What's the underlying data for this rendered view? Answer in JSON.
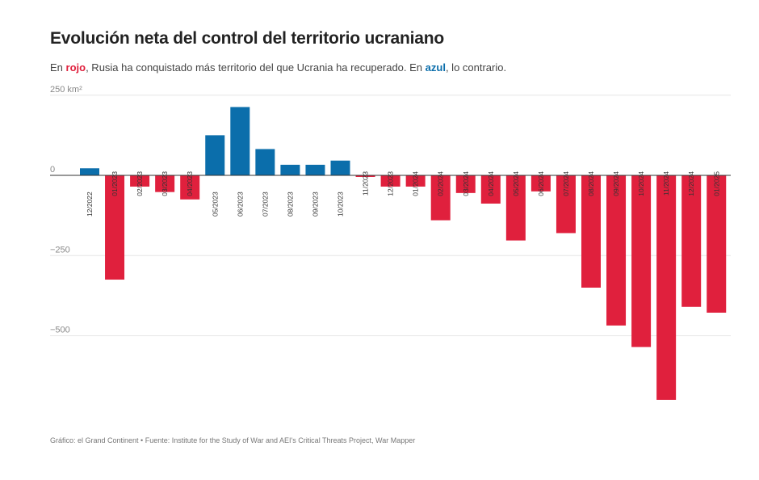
{
  "title": "Evolución neta del control del territorio ucraniano",
  "subtitle": {
    "part1": "En ",
    "red_word": "rojo",
    "part2": ", Rusia ha conquistado más territorio del que Ucrania ha recuperado. En ",
    "blue_word": "azul",
    "part3": ", lo contrario."
  },
  "source": "Gráfico: el Grand Continent • Fuente: Institute for the Study of War and AEI's Critical Threats Project, War Mapper",
  "colors": {
    "positive": "#0b6eab",
    "negative": "#e0203d"
  },
  "chart_data": {
    "type": "bar",
    "title": "Evolución neta del control del territorio ucraniano",
    "xlabel": "",
    "ylabel": "km²",
    "ylim": [
      -720,
      250
    ],
    "y_ticks": [
      250,
      0,
      -250,
      -500
    ],
    "y_tick_labels": [
      "250 km²",
      "0",
      "−250",
      "−500"
    ],
    "grid": true,
    "categories": [
      "12/2022",
      "01/2023",
      "02/2023",
      "03/2023",
      "04/2023",
      "05/2023",
      "06/2023",
      "07/2023",
      "08/2023",
      "09/2023",
      "10/2023",
      "11/2023",
      "12/2023",
      "01/2024",
      "02/2024",
      "03/2024",
      "04/2024",
      "05/2024",
      "06/2024",
      "07/2024",
      "08/2024",
      "09/2024",
      "10/2024",
      "11/2024",
      "12/2024",
      "01/2025"
    ],
    "values": [
      22,
      -325,
      -35,
      -52,
      -75,
      125,
      213,
      82,
      33,
      33,
      46,
      -5,
      -35,
      -35,
      -140,
      -55,
      -88,
      -203,
      -50,
      -180,
      -350,
      -468,
      -535,
      -700,
      -410,
      -428
    ]
  }
}
